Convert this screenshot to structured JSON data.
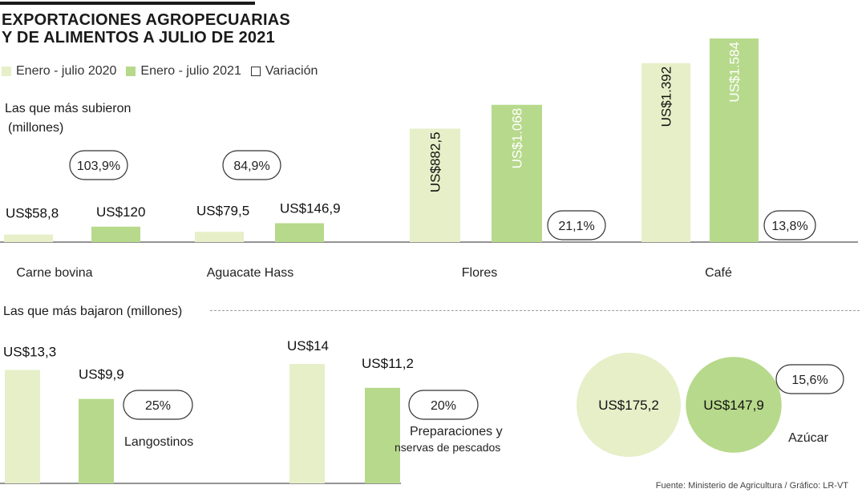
{
  "title_line1": "EXPORTACIONES AGROPECUARIAS",
  "title_line2": "Y DE ALIMENTOS A JULIO DE 2021",
  "legend": [
    {
      "label": "Enero - julio 2020",
      "color": "#e6efc8"
    },
    {
      "label": "Enero - julio 2021",
      "color": "#b7d98b"
    },
    {
      "label": "Variación",
      "color": "#ffffff"
    }
  ],
  "section_up_line1": "Las que más subieron",
  "section_up_line2": "(millones)",
  "section_down": "Las que más bajaron  (millones)",
  "source": "Fuente: Ministerio de Agricultura / Gráfico: LR-VT",
  "colors": {
    "y2020": "#e6efc8",
    "y2021": "#b7d98b",
    "axis": "#555555"
  },
  "chart_data": [
    {
      "type": "bar",
      "title": "Las que más subieron (millones)",
      "categories": [
        "Carne bovina",
        "Aguacate Hass",
        "Flores",
        "Café"
      ],
      "series": [
        {
          "name": "Enero - julio 2020",
          "values": [
            58.8,
            79.5,
            882.5,
            1392
          ]
        },
        {
          "name": "Enero - julio 2021",
          "values": [
            120,
            146.9,
            1068,
            1584
          ]
        }
      ],
      "value_labels_2020": [
        "US$58,8",
        "US$79,5",
        "US$882,5",
        "US$1.392"
      ],
      "value_labels_2021": [
        "US$120",
        "US$146,9",
        "US$1.068",
        "US$1.584"
      ],
      "variation": [
        "103,9%",
        "84,9%",
        "21,1%",
        "13,8%"
      ],
      "ylim": [
        0,
        1584
      ]
    },
    {
      "type": "bar",
      "title": "Las que más bajaron (millones)",
      "categories": [
        "Langostinos",
        "Preparaciones y conservas de pescados",
        "Azúcar"
      ],
      "category_labels": [
        "Langostinos",
        "Preparaciones y",
        "nservas de pescados"
      ],
      "series": [
        {
          "name": "Enero - julio 2020",
          "values": [
            13.3,
            14,
            175.2
          ]
        },
        {
          "name": "Enero - julio 2021",
          "values": [
            9.9,
            11.2,
            147.9
          ]
        }
      ],
      "value_labels_2020": [
        "US$13,3",
        "US$14",
        "US$175,2"
      ],
      "value_labels_2021": [
        "US$9,9",
        "US$11,2",
        "US$147,9"
      ],
      "variation": [
        "25%",
        "20%",
        "15,6%"
      ],
      "note": "Azúcar se muestra como círculos proporcionales"
    }
  ]
}
